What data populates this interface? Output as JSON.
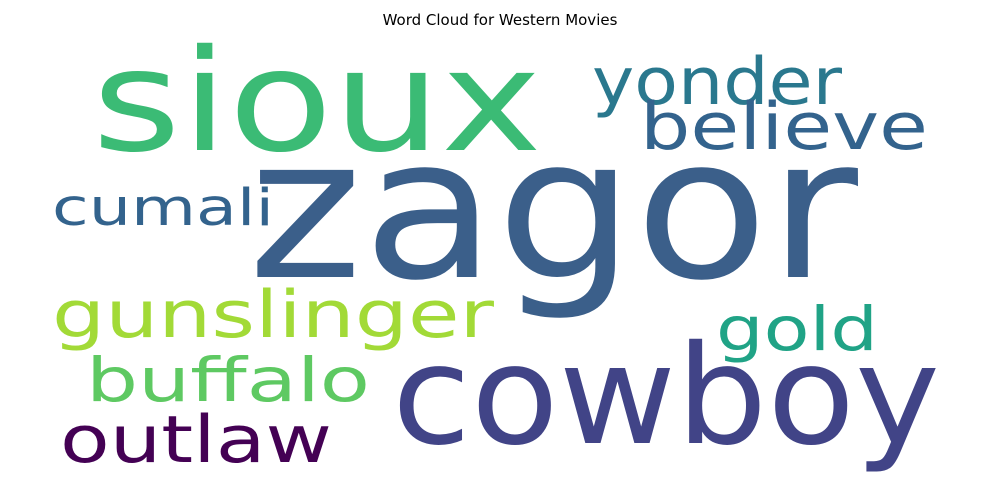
{
  "chart_data": {
    "type": "wordcloud",
    "title": "Word Cloud for Western Movies",
    "words": [
      {
        "text": "zagor",
        "weight": 1.0,
        "color": "#3b5f8a"
      },
      {
        "text": "sioux",
        "weight": 0.72,
        "color": "#3bbb75"
      },
      {
        "text": "cowboy",
        "weight": 0.7,
        "color": "#414487"
      },
      {
        "text": "yonder",
        "weight": 0.33,
        "color": "#2a788e"
      },
      {
        "text": "believe",
        "weight": 0.33,
        "color": "#33638d"
      },
      {
        "text": "gunslinger",
        "weight": 0.33,
        "color": "#a2da37"
      },
      {
        "text": "outlaw",
        "weight": 0.33,
        "color": "#440154"
      },
      {
        "text": "buffalo",
        "weight": 0.31,
        "color": "#5ec962"
      },
      {
        "text": "gold",
        "weight": 0.31,
        "color": "#20a386"
      },
      {
        "text": "cumali",
        "weight": 0.26,
        "color": "#33638d"
      }
    ],
    "background": "#ffffff"
  }
}
